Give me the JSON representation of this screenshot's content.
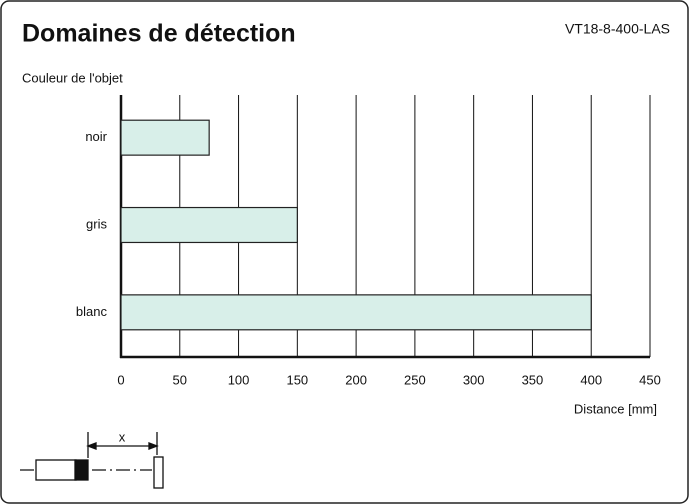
{
  "chart_data": {
    "type": "bar",
    "orientation": "horizontal",
    "title": "Domaines de détection",
    "subtitle": "VT18-8-400-LAS",
    "y_label": "Couleur de l'objet",
    "x_label": "Distance [mm]",
    "categories": [
      "noir",
      "gris",
      "blanc"
    ],
    "values": [
      75,
      150,
      400
    ],
    "color": "#d8efe9",
    "xlim": [
      0,
      450
    ],
    "xticks": [
      0,
      50,
      100,
      150,
      200,
      250,
      300,
      350,
      400,
      450
    ],
    "grid": true,
    "diagram_label": "x"
  }
}
